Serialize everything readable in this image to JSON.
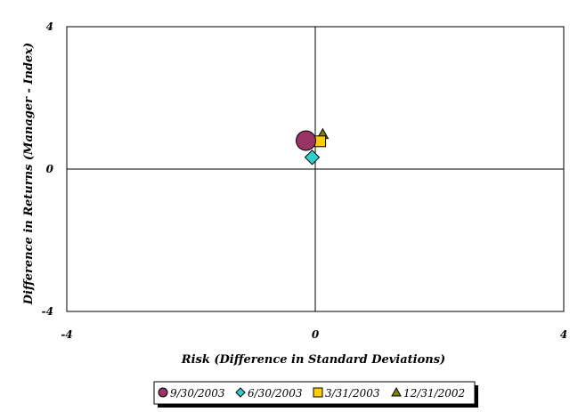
{
  "chart_data": {
    "type": "scatter",
    "xlabel": "Risk (Difference in Standard Deviations)",
    "ylabel": "Difference in Returns (Manager - Index)",
    "xlim": [
      -4,
      4
    ],
    "ylim": [
      -4,
      4
    ],
    "x_ticks": [
      "-4",
      "0",
      "4"
    ],
    "y_ticks": [
      "4",
      "0",
      "-4"
    ],
    "grid": false,
    "legend_position": "bottom",
    "series": [
      {
        "name": "9/30/2003",
        "marker": "circle",
        "color": "#993366",
        "x": -0.15,
        "y": 0.8
      },
      {
        "name": "6/30/2003",
        "marker": "diamond",
        "color": "#33CCCC",
        "x": -0.05,
        "y": 0.33
      },
      {
        "name": "3/31/2003",
        "marker": "square",
        "color": "#FFCC00",
        "x": 0.08,
        "y": 0.78
      },
      {
        "name": "12/31/2002",
        "marker": "triangle",
        "color": "#808000",
        "x": 0.12,
        "y": 0.98
      }
    ]
  }
}
